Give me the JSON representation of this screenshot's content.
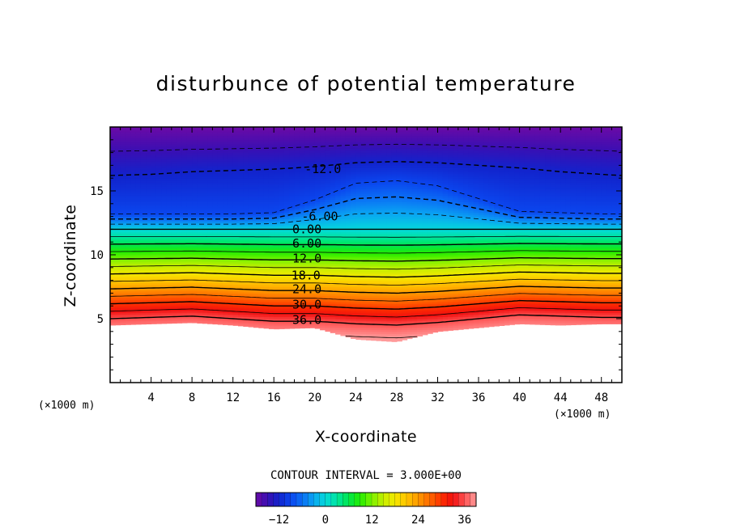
{
  "chart_data": {
    "type": "heatmap",
    "title": "disturbunce of potential temperature",
    "xlabel": "X-coordinate",
    "ylabel": "Z-coordinate",
    "x_unit": "(×1000 m)",
    "y_unit": "(×1000 m)",
    "xlim": [
      0,
      50
    ],
    "ylim": [
      0,
      20
    ],
    "x_ticks": [
      4,
      8,
      12,
      16,
      20,
      24,
      28,
      32,
      36,
      40,
      44,
      48
    ],
    "y_ticks": [
      5,
      10,
      15
    ],
    "contour_interval_text": "CONTOUR INTERVAL = 3.000E+00",
    "contour_interval": 3,
    "contour_labels": [
      {
        "text": "-12.0",
        "x": 19,
        "z": 16.7
      },
      {
        "text": "-6.00",
        "x": 18.7,
        "z": 13.0
      },
      {
        "text": "0.00",
        "x": 17.8,
        "z": 12.0
      },
      {
        "text": "6.00",
        "x": 17.8,
        "z": 10.9
      },
      {
        "text": "12.0",
        "x": 17.8,
        "z": 9.7
      },
      {
        "text": "18.0",
        "x": 17.7,
        "z": 8.4
      },
      {
        "text": "24.0",
        "x": 17.8,
        "z": 7.3
      },
      {
        "text": "30.0",
        "x": 17.8,
        "z": 6.1
      },
      {
        "text": "36.0",
        "x": 17.8,
        "z": 4.9
      }
    ],
    "colorbar": {
      "range": [
        -18,
        39
      ],
      "ticks": [
        -12,
        0,
        12,
        24,
        36
      ],
      "tick_labels": [
        "-12",
        "0",
        "12",
        "24",
        "36"
      ]
    },
    "field_profiles": {
      "x": [
        0,
        4,
        8,
        12,
        16,
        20,
        24,
        28,
        32,
        36,
        40,
        44,
        48,
        50
      ],
      "lowest_level_z": [
        4.5,
        4.6,
        4.7,
        4.5,
        4.2,
        4.3,
        3.4,
        3.2,
        4.0,
        4.3,
        4.6,
        4.5,
        4.6,
        4.6
      ],
      "contour_36_z": [
        5.0,
        5.1,
        5.2,
        5.0,
        4.8,
        4.8,
        4.6,
        4.5,
        4.7,
        5.0,
        5.3,
        5.2,
        5.1,
        5.1
      ],
      "contour_0_z": [
        12.0,
        12.0,
        12.0,
        12.0,
        12.0,
        12.0,
        12.0,
        12.0,
        12.0,
        12.0,
        12.0,
        12.0,
        12.0,
        12.0
      ],
      "contour_minus12_z": [
        16.2,
        16.3,
        16.5,
        16.6,
        16.7,
        16.9,
        17.2,
        17.3,
        17.2,
        17.0,
        16.8,
        16.5,
        16.3,
        16.2
      ],
      "dome_minus9_z": [
        13.2,
        13.2,
        13.2,
        13.2,
        13.3,
        14.3,
        15.6,
        15.8,
        15.4,
        14.4,
        13.4,
        13.3,
        13.2,
        13.2
      ]
    }
  }
}
